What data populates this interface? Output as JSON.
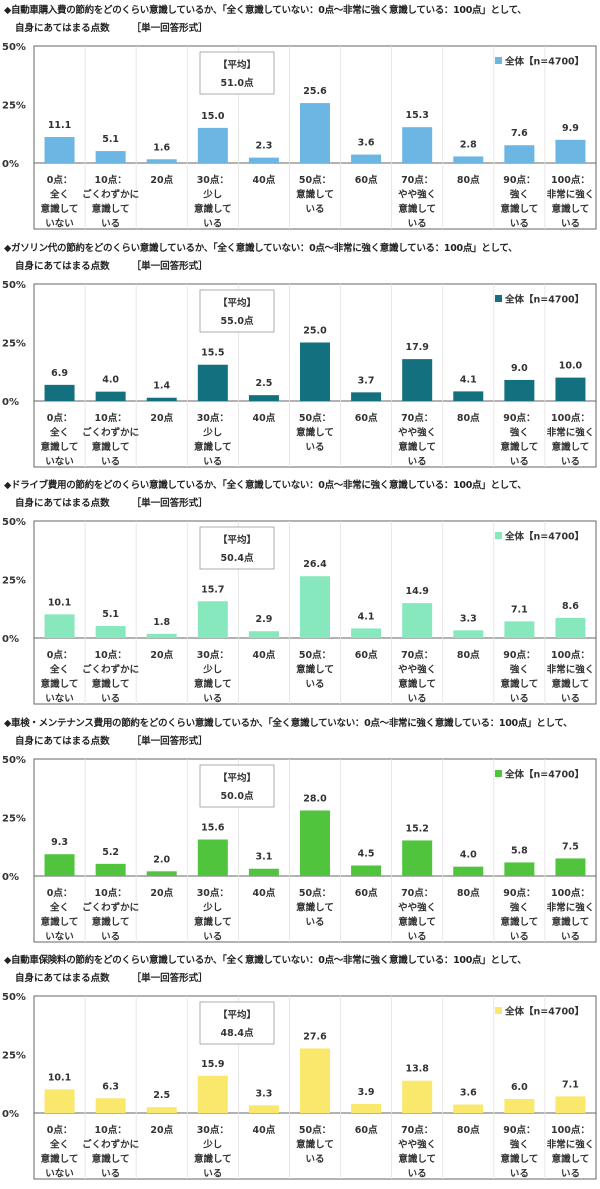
{
  "chart_data": [
    {
      "type": "bar",
      "title": "◆自動車購入費の節約をどのくらい意識しているか、「全く意識していない：0点〜非常に強く意識している：100点」として、",
      "subtitle": "自身にあてはまる点数",
      "format": "［単一回答形式］",
      "ylim": [
        0,
        50
      ],
      "yticks": [
        "0%",
        "25%",
        "50%"
      ],
      "categories": [
        "0点：\n全く\n意識して\nいない",
        "10点：\nごくわずかに\n意識して\nいる",
        "20点",
        "30点：\n少し\n意識して\nいる",
        "40点",
        "50点：\n意識して\nいる",
        "60点",
        "70点：\nやや強く\n意識して\nいる",
        "80点",
        "90点：\n強く\n意識して\nいる",
        "100点：\n非常に強く\n意識して\nいる"
      ],
      "series": [
        {
          "name": "全体【n=4700】",
          "color": "#6cb6e4",
          "values": [
            11.1,
            5.1,
            1.6,
            15.0,
            2.3,
            25.6,
            3.6,
            15.3,
            2.8,
            7.6,
            9.9
          ]
        }
      ],
      "data_labels": [
        "11.1",
        "5.1",
        "1.6",
        "15.0",
        "2.3",
        "25.6",
        "3.6",
        "15.3",
        "2.8",
        "7.6",
        "9.9"
      ],
      "average_label": "【平均】",
      "average_value": "51.0点",
      "legend": "top-right",
      "grid": false
    },
    {
      "type": "bar",
      "title": "◆ガソリン代の節約をどのくらい意識しているか、「全く意識していない：0点〜非常に強く意識している：100点」として、",
      "subtitle": "自身にあてはまる点数",
      "format": "［単一回答形式］",
      "ylim": [
        0,
        50
      ],
      "yticks": [
        "0%",
        "25%",
        "50%"
      ],
      "categories": [
        "0点：\n全く\n意識して\nいない",
        "10点：\nごくわずかに\n意識して\nいる",
        "20点",
        "30点：\n少し\n意識して\nいる",
        "40点",
        "50点：\n意識して\nいる",
        "60点",
        "70点：\nやや強く\n意識して\nいる",
        "80点",
        "90点：\n強く\n意識して\nいる",
        "100点：\n非常に強く\n意識して\nいる"
      ],
      "series": [
        {
          "name": "全体【n=4700】",
          "color": "#13707f",
          "values": [
            6.9,
            4.0,
            1.4,
            15.5,
            2.5,
            25.0,
            3.7,
            17.9,
            4.1,
            9.0,
            10.0
          ]
        }
      ],
      "data_labels": [
        "6.9",
        "4.0",
        "1.4",
        "15.5",
        "2.5",
        "25.0",
        "3.7",
        "17.9",
        "4.1",
        "9.0",
        "10.0"
      ],
      "average_label": "【平均】",
      "average_value": "55.0点",
      "legend": "top-right",
      "grid": false
    },
    {
      "type": "bar",
      "title": "◆ドライブ費用の節約をどのくらい意識しているか、「全く意識していない：0点〜非常に強く意識している：100点」として、",
      "subtitle": "自身にあてはまる点数",
      "format": "［単一回答形式］",
      "ylim": [
        0,
        50
      ],
      "yticks": [
        "0%",
        "25%",
        "50%"
      ],
      "categories": [
        "0点：\n全く\n意識して\nいない",
        "10点：\nごくわずかに\n意識して\nいる",
        "20点",
        "30点：\n少し\n意識して\nいる",
        "40点",
        "50点：\n意識して\nいる",
        "60点",
        "70点：\nやや強く\n意識して\nいる",
        "80点",
        "90点：\n強く\n意識して\nいる",
        "100点：\n非常に強く\n意識して\nいる"
      ],
      "series": [
        {
          "name": "全体【n=4700】",
          "color": "#88e8bd",
          "values": [
            10.1,
            5.1,
            1.8,
            15.7,
            2.9,
            26.4,
            4.1,
            14.9,
            3.3,
            7.1,
            8.6
          ]
        }
      ],
      "data_labels": [
        "10.1",
        "5.1",
        "1.8",
        "15.7",
        "2.9",
        "26.4",
        "4.1",
        "14.9",
        "3.3",
        "7.1",
        "8.6"
      ],
      "average_label": "【平均】",
      "average_value": "50.4点",
      "legend": "top-right",
      "grid": false
    },
    {
      "type": "bar",
      "title": "◆車検・メンテナンス費用の節約をどのくらい意識しているか、「全く意識していない：0点〜非常に強く意識している：100点」として、",
      "subtitle": "自身にあてはまる点数",
      "format": "［単一回答形式］",
      "ylim": [
        0,
        50
      ],
      "yticks": [
        "0%",
        "25%",
        "50%"
      ],
      "categories": [
        "0点：\n全く\n意識して\nいない",
        "10点：\nごくわずかに\n意識して\nいる",
        "20点",
        "30点：\n少し\n意識して\nいる",
        "40点",
        "50点：\n意識して\nいる",
        "60点",
        "70点：\nやや強く\n意識して\nいる",
        "80点",
        "90点：\n強く\n意識して\nいる",
        "100点：\n非常に強く\n意識して\nいる"
      ],
      "series": [
        {
          "name": "全体【n=4700】",
          "color": "#4fc43c",
          "values": [
            9.3,
            5.2,
            2.0,
            15.6,
            3.1,
            28.0,
            4.5,
            15.2,
            4.0,
            5.8,
            7.5
          ]
        }
      ],
      "data_labels": [
        "9.3",
        "5.2",
        "2.0",
        "15.6",
        "3.1",
        "28.0",
        "4.5",
        "15.2",
        "4.0",
        "5.8",
        "7.5"
      ],
      "average_label": "【平均】",
      "average_value": "50.0点",
      "legend": "top-right",
      "grid": false
    },
    {
      "type": "bar",
      "title": "◆自動車保険料の節約をどのくらい意識しているか、「全く意識していない：0点〜非常に強く意識している：100点」として、",
      "subtitle": "自身にあてはまる点数",
      "format": "［単一回答形式］",
      "ylim": [
        0,
        50
      ],
      "yticks": [
        "0%",
        "25%",
        "50%"
      ],
      "categories": [
        "0点：\n全く\n意識して\nいない",
        "10点：\nごくわずかに\n意識して\nいる",
        "20点",
        "30点：\n少し\n意識して\nいる",
        "40点",
        "50点：\n意識して\nいる",
        "60点",
        "70点：\nやや強く\n意識して\nいる",
        "80点",
        "90点：\n強く\n意識して\nいる",
        "100点：\n非常に強く\n意識して\nいる"
      ],
      "series": [
        {
          "name": "全体【n=4700】",
          "color": "#f9e86c",
          "values": [
            10.1,
            6.3,
            2.5,
            15.9,
            3.3,
            27.6,
            3.9,
            13.8,
            3.6,
            6.0,
            7.1
          ]
        }
      ],
      "data_labels": [
        "10.1",
        "6.3",
        "2.5",
        "15.9",
        "3.3",
        "27.6",
        "3.9",
        "13.8",
        "3.6",
        "6.0",
        "7.1"
      ],
      "average_label": "【平均】",
      "average_value": "48.4点",
      "legend": "top-right",
      "grid": false
    }
  ]
}
